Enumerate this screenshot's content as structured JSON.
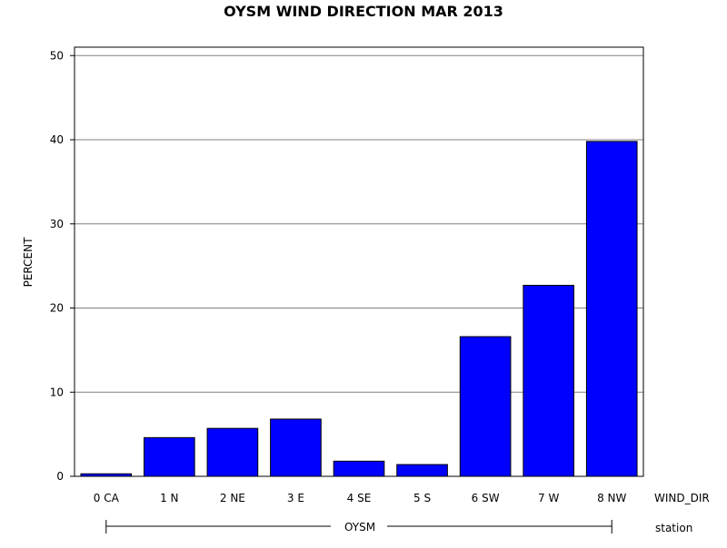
{
  "chart_data": {
    "type": "bar",
    "title": "OYSM WIND DIRECTION MAR 2013",
    "ylabel": "PERCENT",
    "xlabel": "WIND_DIR",
    "group_axis_label": "station",
    "group_label": "OYSM",
    "categories": [
      "0 CA",
      "1 N",
      "2 NE",
      "3 E",
      "4 SE",
      "5 S",
      "6 SW",
      "7 W",
      "8 NW"
    ],
    "values": [
      0.3,
      4.6,
      5.7,
      6.8,
      1.8,
      1.4,
      16.6,
      22.7,
      39.8
    ],
    "ylim": [
      0,
      51
    ],
    "yticks": [
      0,
      10,
      20,
      30,
      40,
      50
    ],
    "bar_color": "#0000ff",
    "grid": true,
    "grid_axis": "y"
  }
}
